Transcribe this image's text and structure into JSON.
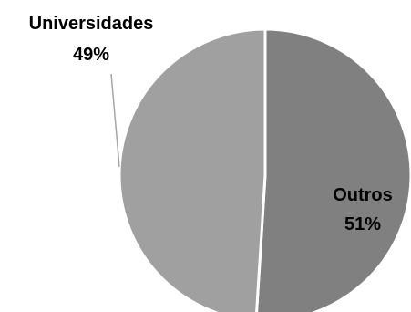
{
  "chart_data": {
    "type": "pie",
    "slices": [
      {
        "label": "Outros",
        "value": 51,
        "value_label": "51%",
        "color": "#808080"
      },
      {
        "label": "Universidades",
        "value": 49,
        "value_label": "49%",
        "color": "#a0a0a0"
      }
    ],
    "start_angle_deg": 0,
    "direction": "clockwise",
    "separator_color": "#ffffff",
    "leader_line_color": "#a6a6a6",
    "legend": "none"
  }
}
